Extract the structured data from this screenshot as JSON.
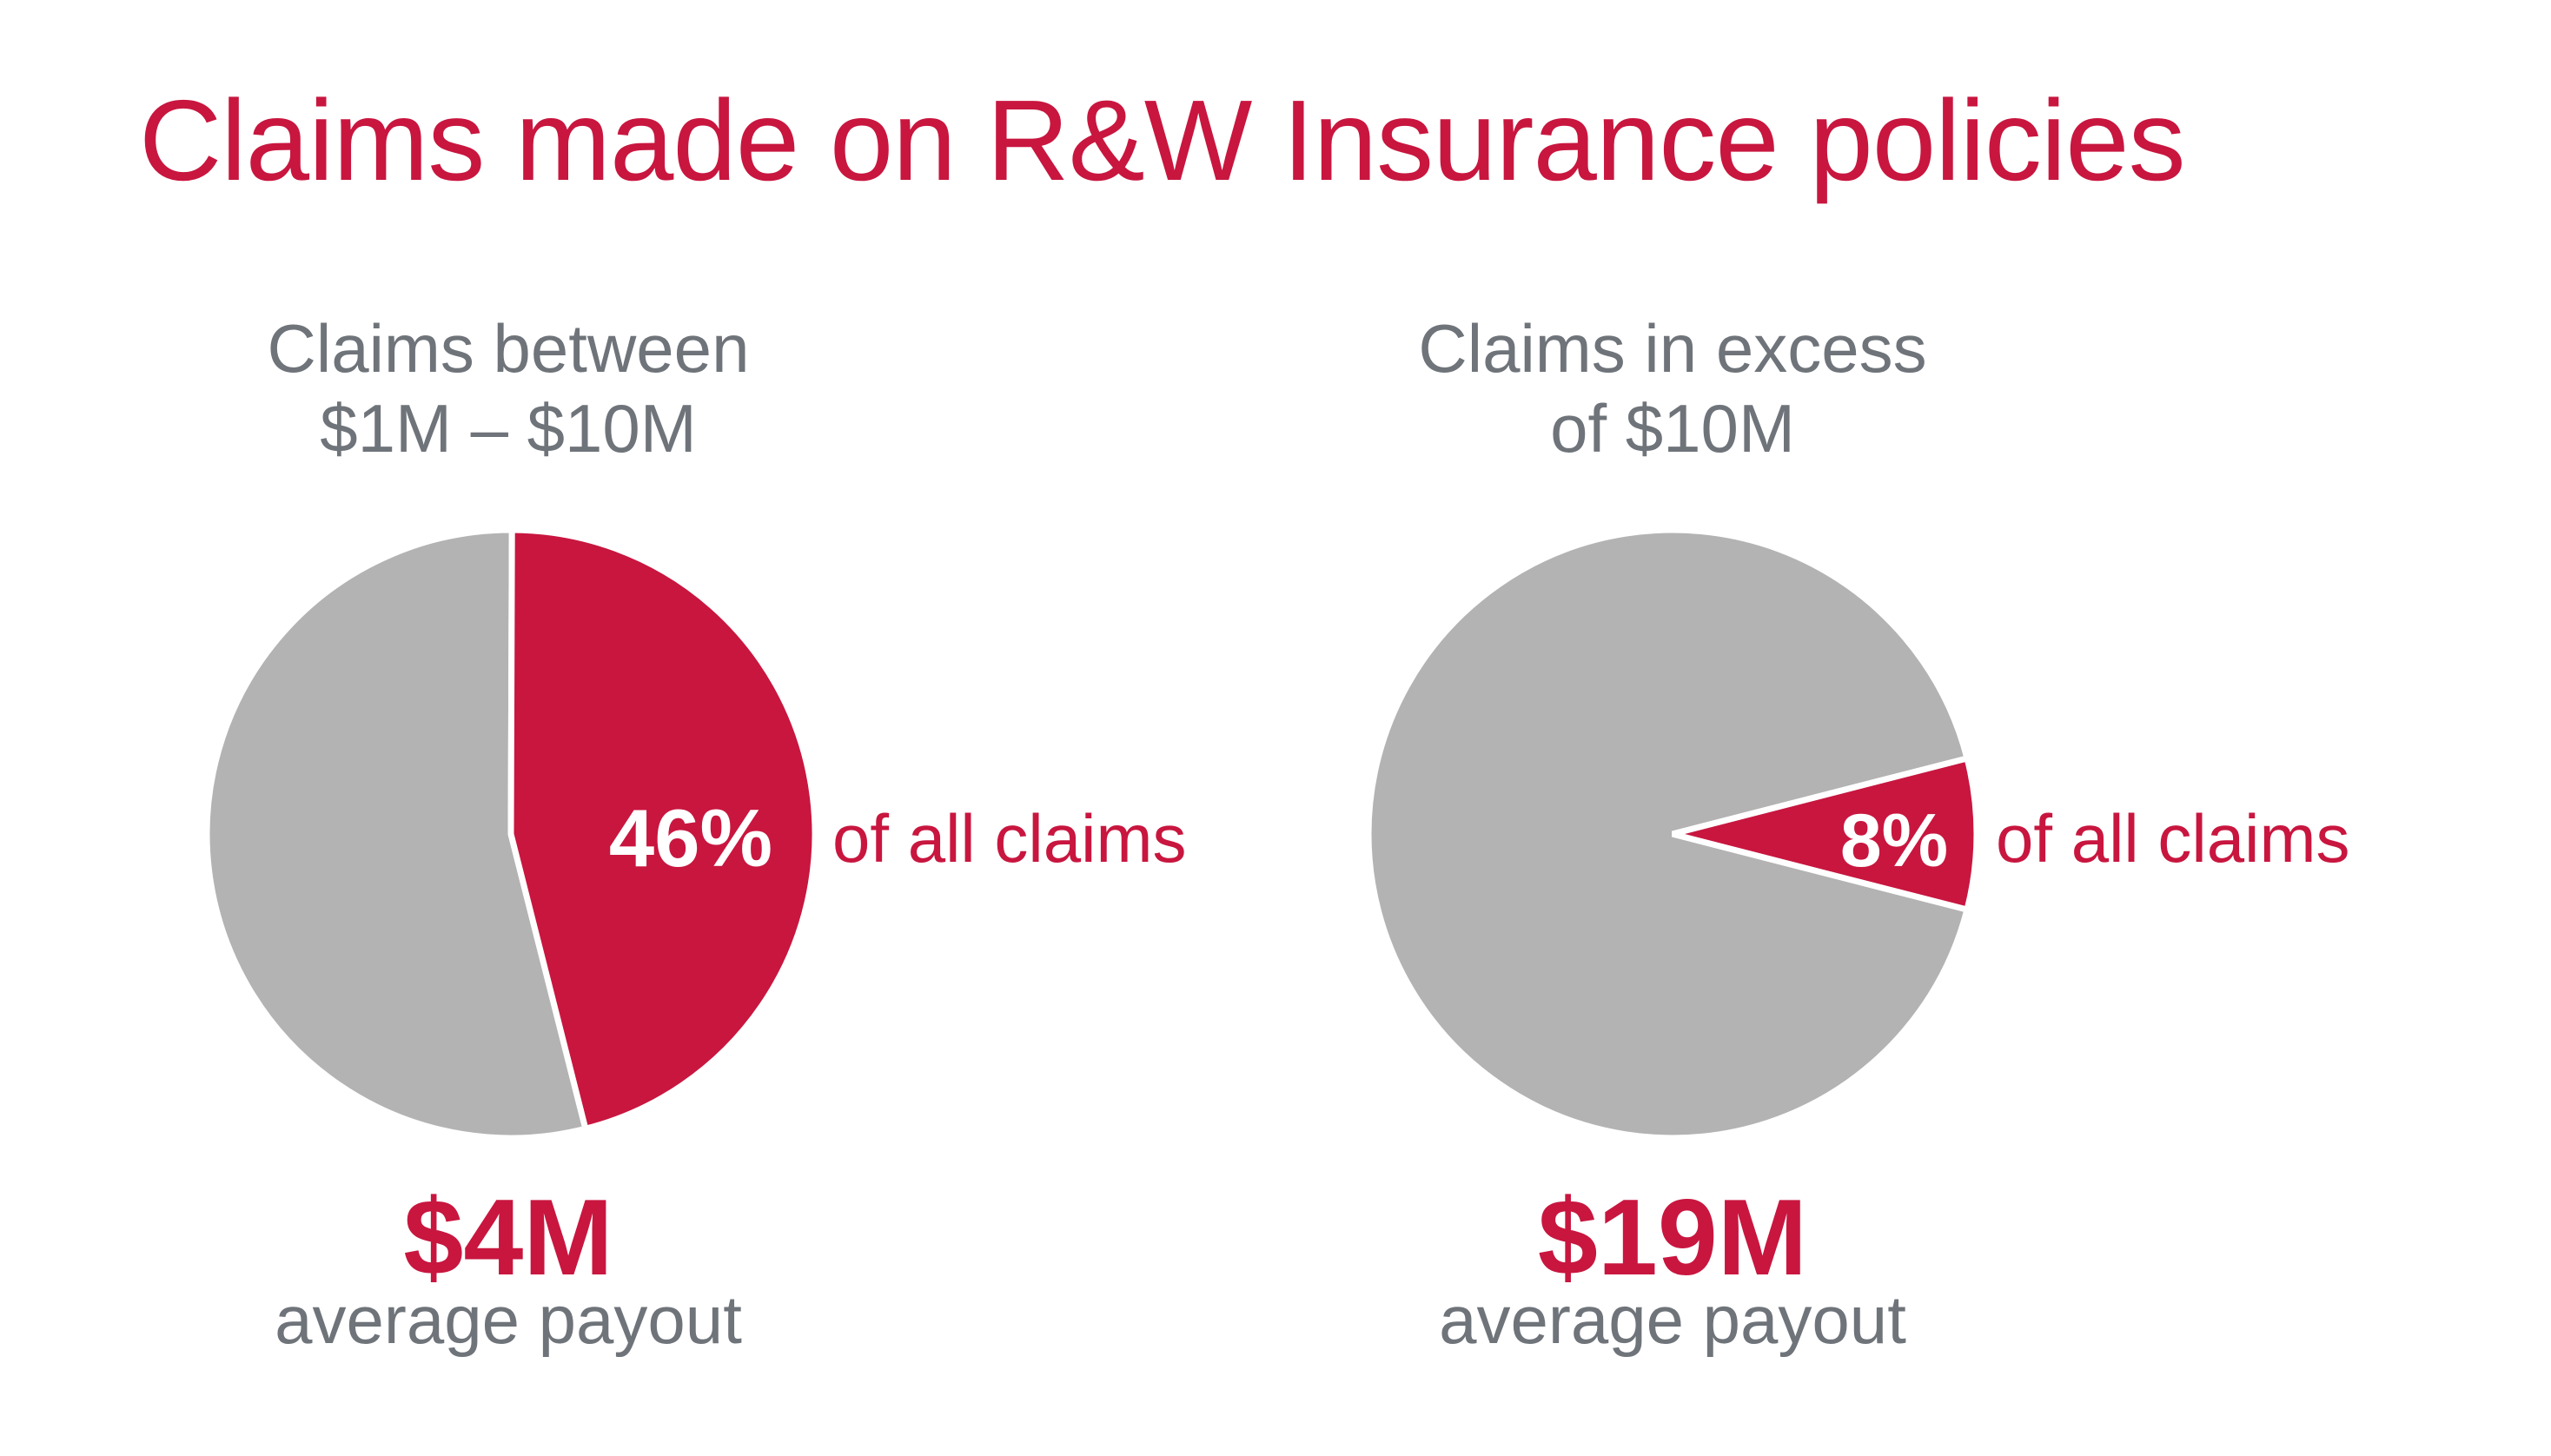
{
  "title": "Claims made on R&W Insurance policies",
  "colors": {
    "accent": "#c8163f",
    "neutral": "#b3b3b3",
    "text_gray": "#6f747a"
  },
  "chart_data": [
    {
      "type": "pie",
      "subtitle": [
        "Claims between",
        "$1M – $10M"
      ],
      "slices": [
        {
          "name": "",
          "value": 46,
          "color": "#c8163f"
        },
        {
          "name": "",
          "value": 54,
          "color": "#b3b3b3"
        }
      ],
      "highlight_label": "46%",
      "highlight_suffix": "of all claims",
      "average_payout": "$4M",
      "average_label": "average payout"
    },
    {
      "type": "pie",
      "subtitle": [
        "Claims in excess",
        "of $10M"
      ],
      "slices": [
        {
          "name": "",
          "value": 8,
          "color": "#c8163f"
        },
        {
          "name": "",
          "value": 92,
          "color": "#b3b3b3"
        }
      ],
      "highlight_label": "8%",
      "highlight_suffix": "of all claims",
      "average_payout": "$19M",
      "average_label": "average payout"
    }
  ]
}
